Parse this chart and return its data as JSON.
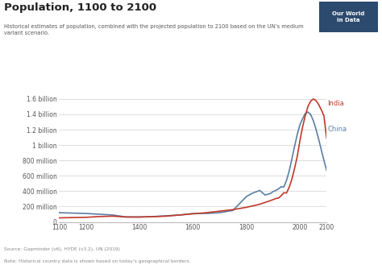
{
  "title": "Population, 1100 to 2100",
  "subtitle": "Historical estimates of population, combined with the projected population to 2100 based on the UN’s medium\nvariant scenario.",
  "source": "Source: Gapminder (v6), HYDE (v3.2), UN (2019)",
  "note": "Note: Historical country data is shown based on today’s geographical borders.",
  "xlim": [
    1100,
    2100
  ],
  "ylim": [
    0,
    1750000000
  ],
  "yticks": [
    0,
    200000000,
    400000000,
    600000000,
    800000000,
    1000000000,
    1200000000,
    1400000000,
    1600000000
  ],
  "ytick_labels": [
    "0",
    "200 million",
    "400 million",
    "600 million",
    "800 million",
    "1 billion",
    "1.2 billion",
    "1.4 billion",
    "1.6 billion"
  ],
  "xticks": [
    1100,
    1200,
    1400,
    1600,
    1800,
    2000,
    2100
  ],
  "india_color": "#c0392b",
  "china_color": "#5b7fa6",
  "bg_color": "#ffffff",
  "grid_color": "#dddddd",
  "india_label": "India",
  "china_label": "China",
  "owid_box_color": "#2c4a6e",
  "india_data": {
    "years": [
      1100,
      1150,
      1200,
      1250,
      1300,
      1350,
      1400,
      1450,
      1500,
      1550,
      1600,
      1650,
      1700,
      1750,
      1800,
      1850,
      1900,
      1910,
      1920,
      1930,
      1940,
      1950,
      1960,
      1970,
      1980,
      1990,
      2000,
      2010,
      2020,
      2030,
      2040,
      2050,
      2060,
      2070,
      2080,
      2090,
      2100
    ],
    "pop": [
      53000000,
      57000000,
      60000000,
      70000000,
      75000000,
      64000000,
      63000000,
      68000000,
      75000000,
      90000000,
      105000000,
      120000000,
      140000000,
      160000000,
      190000000,
      230000000,
      290000000,
      305000000,
      310000000,
      340000000,
      380000000,
      376000000,
      450000000,
      555000000,
      694000000,
      849000000,
      1053000000,
      1234000000,
      1380000000,
      1500000000,
      1570000000,
      1600000000,
      1580000000,
      1530000000,
      1460000000,
      1380000000,
      1090000000
    ]
  },
  "china_data": {
    "years": [
      1100,
      1150,
      1200,
      1250,
      1300,
      1350,
      1400,
      1450,
      1500,
      1550,
      1600,
      1650,
      1700,
      1750,
      1800,
      1820,
      1850,
      1870,
      1880,
      1890,
      1900,
      1910,
      1920,
      1930,
      1940,
      1950,
      1960,
      1970,
      1980,
      1990,
      2000,
      2010,
      2020,
      2030,
      2040,
      2050,
      2060,
      2070,
      2080,
      2090,
      2100
    ],
    "pop": [
      120000000,
      115000000,
      110000000,
      100000000,
      90000000,
      65000000,
      65000000,
      70000000,
      80000000,
      90000000,
      110000000,
      110000000,
      120000000,
      150000000,
      330000000,
      370000000,
      410000000,
      350000000,
      360000000,
      370000000,
      395000000,
      410000000,
      430000000,
      457000000,
      455000000,
      540000000,
      660000000,
      818000000,
      981000000,
      1135000000,
      1263000000,
      1341000000,
      1411000000,
      1430000000,
      1400000000,
      1320000000,
      1210000000,
      1080000000,
      940000000,
      800000000,
      670000000
    ]
  }
}
